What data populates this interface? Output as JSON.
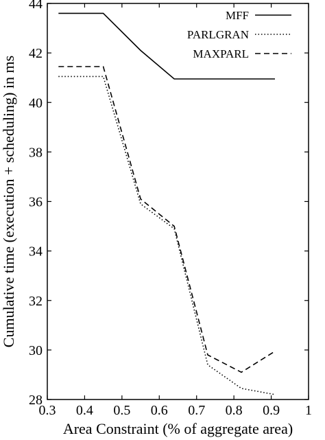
{
  "chart_data": {
    "type": "line",
    "title": "",
    "xlabel": "Area Constraint (% of aggregate area)",
    "ylabel": "Cumulative time (execution + scheduling) in ms",
    "xlim": [
      0.3,
      1.0
    ],
    "ylim": [
      28,
      44
    ],
    "xticks": [
      "0.3",
      "0.4",
      "0.5",
      "0.6",
      "0.7",
      "0.8",
      "0.9",
      "1"
    ],
    "yticks": [
      "28",
      "30",
      "32",
      "34",
      "36",
      "38",
      "40",
      "42",
      "44"
    ],
    "grid": false,
    "legend_position": "top-right",
    "series": [
      {
        "name": "MFF",
        "style": "solid",
        "x": [
          0.33,
          0.45,
          0.55,
          0.64,
          0.91
        ],
        "y": [
          43.6,
          43.6,
          42.1,
          40.95,
          40.95
        ]
      },
      {
        "name": "PARLGRAN",
        "style": "dotted",
        "x": [
          0.33,
          0.45,
          0.55,
          0.64,
          0.73,
          0.82,
          0.91
        ],
        "y": [
          41.05,
          41.05,
          35.9,
          34.9,
          29.4,
          28.45,
          28.2
        ]
      },
      {
        "name": "MAXPARL",
        "style": "dashed",
        "x": [
          0.33,
          0.45,
          0.55,
          0.64,
          0.73,
          0.82,
          0.91
        ],
        "y": [
          41.45,
          41.45,
          36.1,
          35.0,
          29.8,
          29.1,
          29.95
        ]
      }
    ]
  }
}
